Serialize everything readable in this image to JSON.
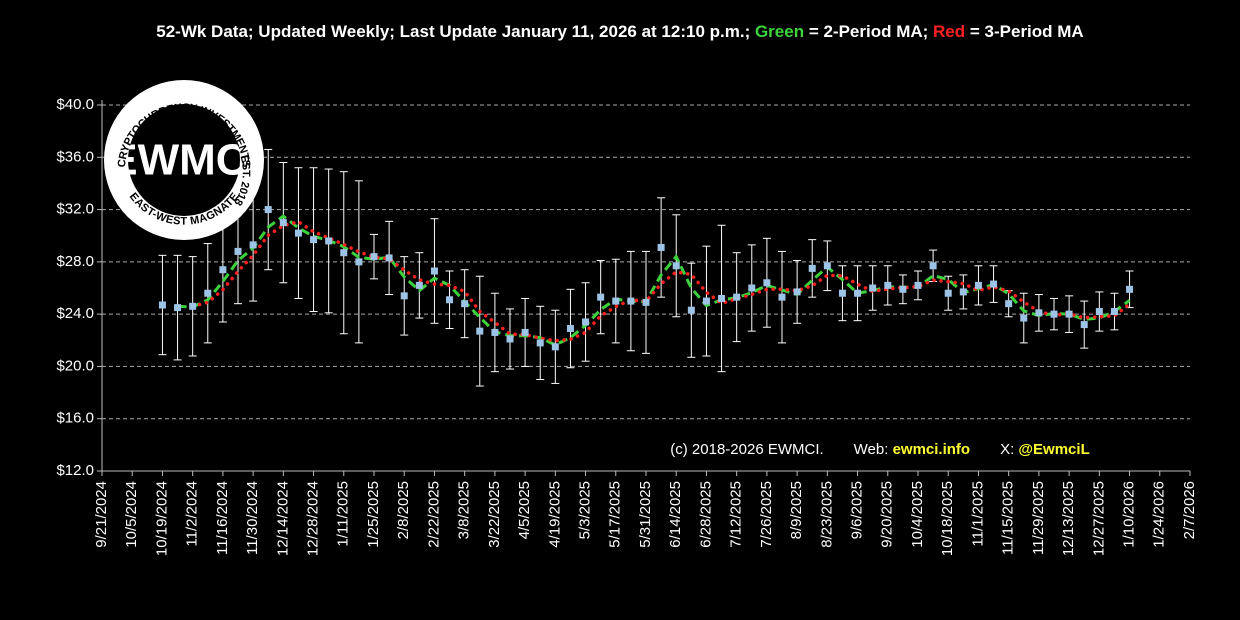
{
  "chart_data": {
    "type": "line",
    "title_parts": [
      {
        "text": "52-Wk Data; Updated Weekly; Last Update January 11, 2026 at 12:10 p.m.; ",
        "color": "#ffffff"
      },
      {
        "text": "Green",
        "color": "#3cd23c"
      },
      {
        "text": " = 2-Period MA; ",
        "color": "#ffffff"
      },
      {
        "text": "Red",
        "color": "#ff2020"
      },
      {
        "text": " = 3-Period MA",
        "color": "#ffffff"
      }
    ],
    "footer": [
      {
        "text": "(c) 2018-2026 EWMCI.",
        "color": "#ffffff"
      },
      {
        "text": "Web: ",
        "color": "#ffffff"
      },
      {
        "text": "ewmci.info",
        "color": "#ffff33"
      },
      {
        "text": "X: ",
        "color": "#ffffff"
      },
      {
        "text": "@EwmciL",
        "color": "#ffff33"
      }
    ],
    "logo": {
      "center": "EWMCI",
      "top": "CRYPTOCURRENCY INVESTMENTS",
      "right": "EST. 2018",
      "bottom": "EAST-WEST MAGNATE"
    },
    "x": [
      "10/19/2024",
      "10/26/2024",
      "11/2/2024",
      "11/9/2024",
      "11/16/2024",
      "11/23/2024",
      "11/30/2024",
      "12/7/2024",
      "12/14/2024",
      "12/21/2024",
      "12/28/2024",
      "1/4/2025",
      "1/11/2025",
      "1/18/2025",
      "1/25/2025",
      "2/1/2025",
      "2/8/2025",
      "2/15/2025",
      "2/22/2025",
      "3/1/2025",
      "3/8/2025",
      "3/15/2025",
      "3/22/2025",
      "3/29/2025",
      "4/5/2025",
      "4/12/2025",
      "4/19/2025",
      "4/26/2025",
      "5/3/2025",
      "5/10/2025",
      "5/17/2025",
      "5/24/2025",
      "5/31/2025",
      "6/7/2025",
      "6/14/2025",
      "6/21/2025",
      "6/28/2025",
      "7/5/2025",
      "7/12/2025",
      "7/19/2025",
      "7/26/2025",
      "8/2/2025",
      "8/9/2025",
      "8/16/2025",
      "8/23/2025",
      "8/30/2025",
      "9/6/2025",
      "9/13/2025",
      "9/20/2025",
      "9/27/2025",
      "10/4/2025",
      "10/11/2025",
      "10/18/2025",
      "10/25/2025",
      "11/1/2025",
      "11/8/2025",
      "11/15/2025",
      "11/22/2025",
      "11/29/2025",
      "12/6/2025",
      "12/13/2025",
      "12/20/2025",
      "12/27/2025",
      "1/3/2026",
      "1/10/2026"
    ],
    "series": [
      {
        "style": "markers",
        "color": "#9dc3e6",
        "error_color": "#ffffff",
        "values": [
          24.7,
          24.5,
          24.6,
          25.6,
          27.4,
          28.8,
          29.3,
          32.0,
          31.0,
          30.2,
          29.7,
          29.6,
          28.7,
          28.0,
          28.4,
          28.3,
          25.4,
          26.2,
          27.3,
          25.1,
          24.8,
          22.7,
          22.6,
          22.1,
          22.6,
          21.8,
          21.5,
          22.9,
          23.4,
          25.3,
          25.0,
          25.0,
          24.9,
          29.1,
          27.7,
          24.3,
          25.0,
          25.2,
          25.3,
          26.0,
          26.4,
          25.3,
          25.7,
          27.5,
          27.7,
          25.6,
          25.6,
          26.0,
          26.2,
          25.9,
          26.2,
          27.7,
          25.6,
          25.7,
          26.2,
          26.3,
          24.8,
          23.7,
          24.1,
          24.0,
          24.0,
          23.2,
          24.2,
          24.2,
          25.9
        ],
        "errors": [
          3.8,
          4.0,
          3.8,
          3.8,
          4.0,
          4.0,
          4.3,
          4.6,
          4.6,
          5.0,
          5.5,
          5.5,
          6.2,
          6.2,
          1.7,
          2.8,
          3.0,
          2.5,
          4.0,
          2.2,
          2.6,
          4.2,
          3.0,
          2.3,
          2.6,
          2.8,
          2.8,
          3.0,
          3.0,
          2.8,
          3.2,
          3.8,
          3.9,
          3.8,
          3.9,
          3.6,
          4.2,
          5.6,
          3.4,
          3.3,
          3.4,
          3.5,
          2.4,
          2.2,
          1.9,
          2.1,
          2.1,
          1.7,
          1.5,
          1.1,
          1.1,
          1.2,
          1.3,
          1.3,
          1.5,
          1.4,
          1.0,
          1.9,
          1.4,
          1.2,
          1.4,
          1.8,
          1.5,
          1.4,
          1.4
        ]
      },
      {
        "style": "dashed",
        "color": "#3cd23c",
        "values": [
          null,
          24.6,
          24.55,
          25.1,
          26.5,
          28.1,
          29.05,
          30.65,
          31.5,
          30.6,
          29.95,
          29.65,
          29.15,
          28.35,
          28.2,
          28.35,
          26.85,
          25.8,
          26.75,
          26.2,
          24.95,
          23.75,
          22.65,
          22.35,
          22.35,
          22.2,
          21.65,
          22.2,
          23.15,
          24.35,
          25.15,
          25.0,
          24.95,
          27.0,
          28.4,
          26.0,
          24.65,
          25.1,
          25.25,
          25.65,
          26.2,
          25.85,
          25.5,
          26.6,
          27.6,
          26.65,
          25.6,
          25.8,
          26.1,
          26.05,
          26.05,
          26.95,
          26.65,
          25.65,
          25.95,
          26.25,
          25.55,
          24.25,
          23.9,
          24.05,
          24.0,
          23.6,
          23.7,
          24.2,
          25.05
        ]
      },
      {
        "style": "dotted",
        "color": "#ff2020",
        "values": [
          null,
          null,
          24.6,
          24.9,
          25.87,
          27.27,
          28.5,
          30.03,
          30.77,
          31.07,
          30.3,
          29.83,
          29.33,
          28.77,
          28.37,
          28.23,
          27.37,
          26.63,
          26.3,
          26.2,
          25.73,
          24.2,
          23.37,
          22.47,
          22.43,
          22.17,
          21.97,
          22.07,
          22.6,
          23.87,
          24.57,
          25.1,
          24.97,
          26.33,
          27.23,
          27.03,
          25.67,
          24.83,
          25.17,
          25.5,
          25.9,
          25.9,
          25.8,
          26.17,
          26.97,
          26.93,
          26.3,
          25.73,
          25.93,
          26.03,
          26.1,
          26.6,
          26.5,
          26.33,
          25.83,
          26.07,
          25.77,
          24.93,
          24.2,
          23.93,
          24.03,
          23.73,
          23.8,
          23.87,
          24.77
        ]
      }
    ],
    "xlim": [
      "9/21/2024",
      "2/7/2026"
    ],
    "xticks": [
      "9/21/2024",
      "10/5/2024",
      "10/19/2024",
      "11/2/2024",
      "11/16/2024",
      "11/30/2024",
      "12/14/2024",
      "12/28/2024",
      "1/11/2025",
      "1/25/2025",
      "2/8/2025",
      "2/22/2025",
      "3/8/2025",
      "3/22/2025",
      "4/5/2025",
      "4/19/2025",
      "5/3/2025",
      "5/17/2025",
      "5/31/2025",
      "6/14/2025",
      "6/28/2025",
      "7/12/2025",
      "7/26/2025",
      "8/9/2025",
      "8/23/2025",
      "9/6/2025",
      "9/20/2025",
      "10/4/2025",
      "10/18/2025",
      "11/1/2025",
      "11/15/2025",
      "11/29/2025",
      "12/13/2025",
      "12/27/2025",
      "1/10/2026",
      "1/24/2026",
      "2/7/2026"
    ],
    "ylim": [
      12,
      40
    ],
    "yticks": [
      {
        "value": 12,
        "label": "$12.0"
      },
      {
        "value": 16,
        "label": "$16.0"
      },
      {
        "value": 20,
        "label": "$20.0"
      },
      {
        "value": 24,
        "label": "$24.0"
      },
      {
        "value": 28,
        "label": "$28.0"
      },
      {
        "value": 32,
        "label": "$32.0"
      },
      {
        "value": 36,
        "label": "$36.0"
      },
      {
        "value": 40,
        "label": "$40.0"
      }
    ],
    "grid": true
  }
}
